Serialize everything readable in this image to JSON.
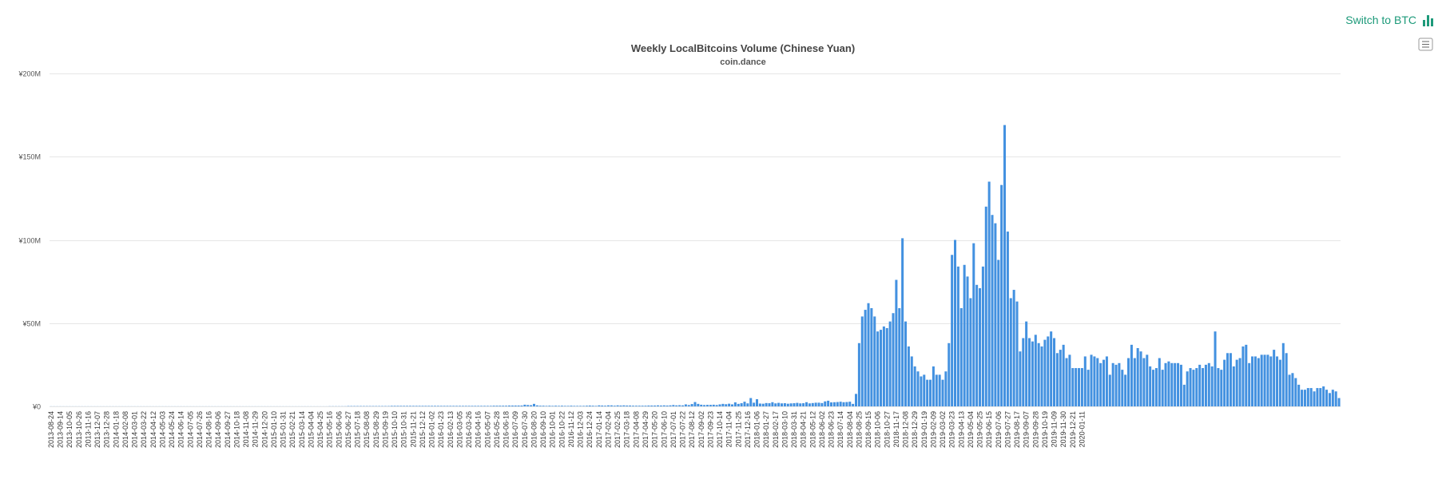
{
  "toolbar": {
    "switch_label": "Switch to BTC",
    "switch_icon": "bar-chart-icon",
    "menu_icon": "hamburger-menu-icon"
  },
  "colors": {
    "bar": "#4391e0",
    "link": "#1d9a7a"
  },
  "chart_data": {
    "type": "bar",
    "title": "Weekly LocalBitcoins Volume (Chinese Yuan)",
    "subtitle": "coin.dance",
    "xlabel": "",
    "ylabel": "",
    "ylim": [
      0,
      200
    ],
    "y_unit": "millions CNY",
    "y_ticks": [
      0,
      50,
      100,
      150,
      200
    ],
    "y_tick_labels": [
      "¥0",
      "¥50M",
      "¥100M",
      "¥150M",
      "¥200M"
    ],
    "grid": true,
    "legend": "none",
    "start_date": "2013-08-24",
    "interval_days": 7,
    "x_tick_labels": [
      "2013-08-24",
      "2013-09-14",
      "2013-10-05",
      "2013-10-26",
      "2013-11-16",
      "2013-12-07",
      "2013-12-28",
      "2014-01-18",
      "2014-02-08",
      "2014-03-01",
      "2014-03-22",
      "2014-04-12",
      "2014-05-03",
      "2014-05-24",
      "2014-06-14",
      "2014-07-05",
      "2014-07-26",
      "2014-08-16",
      "2014-09-06",
      "2014-09-27",
      "2014-10-18",
      "2014-11-08",
      "2014-11-29",
      "2014-12-20",
      "2015-01-10",
      "2015-01-31",
      "2015-02-21",
      "2015-03-14",
      "2015-04-04",
      "2015-04-25",
      "2015-05-16",
      "2015-06-06",
      "2015-06-27",
      "2015-07-18",
      "2015-08-08",
      "2015-08-29",
      "2015-09-19",
      "2015-10-10",
      "2015-10-31",
      "2015-11-21",
      "2015-12-12",
      "2016-01-02",
      "2016-01-23",
      "2016-02-13",
      "2016-03-05",
      "2016-03-26",
      "2016-04-16",
      "2016-05-07",
      "2016-05-28",
      "2016-06-18",
      "2016-07-09",
      "2016-07-30",
      "2016-08-20",
      "2016-09-10",
      "2016-10-01",
      "2016-10-22",
      "2016-11-12",
      "2016-12-03",
      "2016-12-24",
      "2017-01-14",
      "2017-02-04",
      "2017-02-25",
      "2017-03-18",
      "2017-04-08",
      "2017-04-29",
      "2017-05-20",
      "2017-06-10",
      "2017-07-01",
      "2017-07-22",
      "2017-08-12",
      "2017-09-02",
      "2017-09-23",
      "2017-10-14",
      "2017-11-04",
      "2017-11-25",
      "2017-12-16",
      "2018-01-06",
      "2018-01-27",
      "2018-02-17",
      "2018-03-10",
      "2018-03-31",
      "2018-04-21",
      "2018-05-12",
      "2018-06-02",
      "2018-06-23",
      "2018-07-14",
      "2018-08-04",
      "2018-08-25",
      "2018-09-15",
      "2018-10-06",
      "2018-10-27",
      "2018-11-17",
      "2018-12-08",
      "2018-12-29",
      "2019-01-19",
      "2019-02-09",
      "2019-03-02",
      "2019-03-23",
      "2019-04-13",
      "2019-05-04",
      "2019-05-25",
      "2019-06-15",
      "2019-07-06",
      "2019-07-27",
      "2019-08-17",
      "2019-09-07",
      "2019-09-28",
      "2019-10-19",
      "2019-11-09",
      "2019-11-30",
      "2019-12-21",
      "2020-01-11"
    ],
    "values": [
      0.05,
      0.05,
      0.05,
      0.05,
      0.05,
      0.05,
      0.05,
      0.05,
      0.05,
      0.05,
      0.05,
      0.05,
      0.05,
      0.05,
      0.05,
      0.05,
      0.05,
      0.05,
      0.05,
      0.05,
      0.05,
      0.05,
      0.05,
      0.05,
      0.05,
      0.05,
      0.05,
      0.05,
      0.05,
      0.05,
      0.05,
      0.05,
      0.05,
      0.05,
      0.05,
      0.05,
      0.05,
      0.05,
      0.05,
      0.05,
      0.05,
      0.05,
      0.05,
      0.05,
      0.05,
      0.05,
      0.05,
      0.05,
      0.05,
      0.05,
      0.05,
      0.05,
      0.05,
      0.05,
      0.05,
      0.05,
      0.05,
      0.05,
      0.05,
      0.05,
      0.05,
      0.05,
      0.05,
      0.05,
      0.05,
      0.05,
      0.05,
      0.05,
      0.05,
      0.05,
      0.05,
      0.05,
      0.05,
      0.05,
      0.05,
      0.05,
      0.05,
      0.05,
      0.05,
      0.05,
      0.05,
      0.05,
      0.05,
      0.05,
      0.05,
      0.05,
      0.05,
      0.05,
      0.05,
      0.05,
      0.1,
      0.1,
      0.1,
      0.1,
      0.1,
      0.1,
      0.2,
      0.2,
      0.2,
      0.2,
      0.2,
      0.2,
      0.2,
      0.2,
      0.2,
      0.2,
      0.2,
      0.2,
      0.2,
      0.2,
      0.3,
      0.3,
      0.3,
      0.3,
      0.3,
      0.3,
      0.3,
      0.3,
      0.3,
      0.3,
      0.3,
      0.3,
      0.3,
      0.3,
      0.3,
      0.3,
      0.3,
      0.3,
      0.3,
      0.3,
      0.3,
      0.3,
      0.3,
      0.3,
      0.3,
      0.3,
      0.3,
      0.3,
      0.3,
      0.3,
      0.3,
      0.3,
      0.3,
      0.4,
      0.4,
      0.4,
      0.4,
      0.4,
      0.5,
      0.5,
      0.5,
      0.5,
      0.5,
      1.0,
      0.8,
      0.7,
      1.5,
      0.6,
      0.4,
      0.4,
      0.3,
      0.4,
      0.3,
      0.4,
      0.3,
      0.4,
      0.3,
      0.3,
      0.4,
      0.3,
      0.3,
      0.3,
      0.3,
      0.4,
      0.5,
      0.4,
      0.3,
      0.6,
      0.5,
      0.4,
      0.6,
      0.6,
      0.4,
      0.6,
      0.5,
      0.6,
      0.5,
      0.5,
      0.4,
      0.4,
      0.4,
      0.4,
      0.4,
      0.5,
      0.5,
      0.5,
      0.6,
      0.5,
      0.6,
      0.5,
      0.6,
      0.8,
      0.6,
      0.7,
      0.6,
      1.2,
      0.8,
      1.4,
      2.6,
      1.5,
      1.0,
      0.8,
      0.9,
      0.9,
      1.0,
      0.8,
      1.2,
      1.5,
      1.3,
      1.6,
      1.2,
      2.4,
      1.5,
      1.9,
      2.8,
      1.8,
      5.0,
      2.2,
      4.3,
      1.7,
      1.6,
      2.0,
      1.9,
      2.5,
      1.8,
      2.1,
      1.8,
      1.9,
      1.6,
      1.8,
      1.9,
      2.1,
      1.8,
      1.9,
      2.5,
      1.8,
      2.0,
      2.2,
      2.2,
      2.0,
      3.0,
      3.4,
      2.4,
      2.5,
      2.6,
      2.8,
      2.5,
      2.6,
      2.8,
      1.5,
      7.5,
      38,
      54,
      58,
      62,
      59,
      54,
      45,
      46,
      48,
      47,
      51,
      56,
      76,
      59,
      101,
      51,
      36,
      30,
      24,
      21,
      18,
      19,
      16,
      16,
      24,
      19,
      19,
      16,
      21,
      38,
      91,
      100,
      84,
      59,
      85,
      78,
      65,
      98,
      73,
      71,
      84,
      120,
      135,
      115,
      110,
      88,
      133,
      169,
      105,
      65,
      70,
      63,
      33,
      41,
      51,
      41,
      39,
      43,
      38,
      36,
      40,
      42,
      45,
      41,
      32,
      34,
      37,
      29,
      31,
      23,
      23,
      23,
      23,
      30,
      22,
      31,
      30,
      29,
      26,
      28,
      30,
      19,
      26,
      25,
      26,
      22,
      19,
      29,
      37,
      29,
      35,
      33,
      29,
      31,
      24,
      22,
      23,
      29,
      22,
      26,
      27,
      26,
      26,
      26,
      25,
      13,
      21,
      23,
      22,
      23,
      25,
      23,
      25,
      26,
      24,
      45,
      23,
      22,
      28,
      32,
      32,
      24,
      28,
      29,
      36,
      37,
      26,
      30,
      30,
      29,
      31,
      31,
      31,
      30,
      34,
      30,
      28,
      38,
      32,
      19,
      20,
      17,
      13,
      10,
      10,
      11,
      11,
      9,
      11,
      11,
      12,
      10,
      8,
      10,
      9,
      5
    ]
  }
}
